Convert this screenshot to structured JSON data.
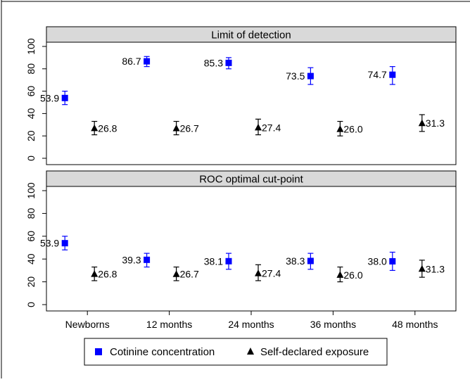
{
  "chart_data": {
    "type": "scatter",
    "categories": [
      "Newborns",
      "12 months",
      "24 months",
      "36 months",
      "48 months"
    ],
    "ylim": [
      0,
      100
    ],
    "yticks": [
      0,
      20,
      40,
      60,
      80,
      100
    ],
    "legend_placement": "bottom",
    "grid": false,
    "series_styles": [
      {
        "name": "Cotinine concentration",
        "color": "#0000ff",
        "marker": "square",
        "errorbar_color": "#0000ff"
      },
      {
        "name": "Self-declared exposure",
        "color": "#000000",
        "marker": "triangle",
        "errorbar_color": "#000000"
      }
    ],
    "panels": [
      {
        "title": "Limit of detection",
        "series": [
          {
            "name": "Cotinine concentration",
            "values": [
              53.9,
              86.7,
              85.3,
              73.5,
              74.7
            ],
            "lower": [
              48,
              82,
              80,
              66,
              66
            ],
            "upper": [
              60,
              91,
              90,
              81,
              82
            ],
            "labels": [
              "53.9",
              "86.7",
              "85.3",
              "73.5",
              "74.7"
            ]
          },
          {
            "name": "Self-declared exposure",
            "values": [
              26.8,
              26.7,
              27.4,
              26.0,
              31.3
            ],
            "lower": [
              21,
              21,
              21,
              20,
              24
            ],
            "upper": [
              33,
              33,
              35,
              33,
              39
            ],
            "labels": [
              "26.8",
              "26.7",
              "27.4",
              "26.0",
              "31.3"
            ]
          }
        ]
      },
      {
        "title": "ROC optimal cut-point",
        "series": [
          {
            "name": "Cotinine concentration",
            "values": [
              53.9,
              39.3,
              38.1,
              38.3,
              38.0
            ],
            "lower": [
              48,
              33,
              31,
              31,
              30
            ],
            "upper": [
              60,
              45,
              45,
              45,
              46
            ],
            "labels": [
              "53.9",
              "39.3",
              "38.1",
              "38.3",
              "38.0"
            ]
          },
          {
            "name": "Self-declared exposure",
            "values": [
              26.8,
              26.7,
              27.4,
              26.0,
              31.3
            ],
            "lower": [
              21,
              21,
              21,
              20,
              24
            ],
            "upper": [
              33,
              33,
              35,
              33,
              39
            ],
            "labels": [
              "26.8",
              "26.7",
              "27.4",
              "26.0",
              "31.3"
            ]
          }
        ]
      }
    ]
  }
}
